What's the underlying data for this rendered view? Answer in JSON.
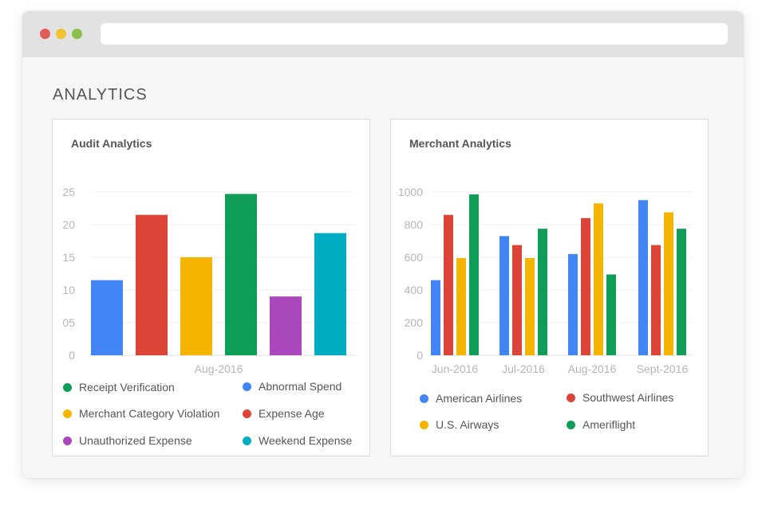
{
  "page": {
    "title": "ANALYTICS"
  },
  "colors": {
    "blue": "#4285f4",
    "red": "#db4437",
    "yellow": "#f4b400",
    "green": "#0f9d58",
    "purple": "#ab47bc",
    "teal": "#00acc1"
  },
  "audit": {
    "title": "Audit Analytics",
    "legend": [
      {
        "label": "Receipt Verification",
        "color": "#0f9d58"
      },
      {
        "label": "Abnormal Spend",
        "color": "#4285f4"
      },
      {
        "label": "Merchant Category Violation",
        "color": "#f4b400"
      },
      {
        "label": "Expense Age",
        "color": "#db4437"
      },
      {
        "label": "Unauthorized Expense",
        "color": "#ab47bc"
      },
      {
        "label": "Weekend Expense",
        "color": "#00acc1"
      }
    ]
  },
  "merchant": {
    "title": "Merchant Analytics",
    "legend": [
      {
        "label": "American Airlines",
        "color": "#4285f4"
      },
      {
        "label": "Southwest Airlines",
        "color": "#db4437"
      },
      {
        "label": "U.S. Airways",
        "color": "#f4b400"
      },
      {
        "label": "Ameriflight",
        "color": "#0f9d58"
      }
    ]
  },
  "chart_data": [
    {
      "type": "bar",
      "title": "Audit Analytics",
      "categories": [
        "Aug-2016"
      ],
      "yticks": [
        "0",
        "05",
        "10",
        "15",
        "20",
        "25"
      ],
      "ylim": [
        0,
        25
      ],
      "series": [
        {
          "name": "Abnormal Spend",
          "color": "#4285f4",
          "values": [
            11.5
          ]
        },
        {
          "name": "Expense Age",
          "color": "#db4437",
          "values": [
            21.5
          ]
        },
        {
          "name": "Merchant Category Violation",
          "color": "#f4b400",
          "values": [
            15
          ]
        },
        {
          "name": "Receipt Verification",
          "color": "#0f9d58",
          "values": [
            24.7
          ]
        },
        {
          "name": "Unauthorized Expense",
          "color": "#ab47bc",
          "values": [
            9
          ]
        },
        {
          "name": "Weekend Expense",
          "color": "#00acc1",
          "values": [
            18.7
          ]
        }
      ],
      "grid": true,
      "legend_position": "bottom"
    },
    {
      "type": "bar",
      "title": "Merchant Analytics",
      "categories": [
        "Jun-2016",
        "Jul-2016",
        "Aug-2016",
        "Sept-2016"
      ],
      "yticks": [
        "0",
        "200",
        "400",
        "600",
        "800",
        "1000"
      ],
      "ylim": [
        0,
        1000
      ],
      "series": [
        {
          "name": "American Airlines",
          "color": "#4285f4",
          "values": [
            460,
            730,
            620,
            950
          ]
        },
        {
          "name": "Southwest Airlines",
          "color": "#db4437",
          "values": [
            860,
            675,
            840,
            675
          ]
        },
        {
          "name": "U.S. Airways",
          "color": "#f4b400",
          "values": [
            595,
            595,
            930,
            875
          ]
        },
        {
          "name": "Ameriflight",
          "color": "#0f9d58",
          "values": [
            985,
            775,
            495,
            775
          ]
        }
      ],
      "grid": true,
      "legend_position": "bottom"
    }
  ]
}
